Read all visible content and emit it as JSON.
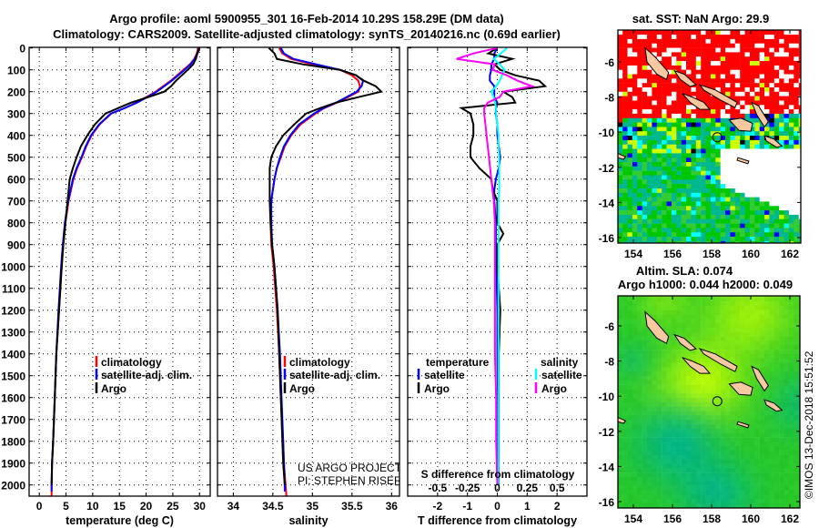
{
  "title": {
    "line1": "Argo profile: aoml 5900955_301 16-Feb-2014 10.29S 158.29E (DM data)",
    "line2": "Climatology: CARS2009. Satellite-adjusted climatology: synTS_20140216.nc (0.69d earlier)"
  },
  "credits": {
    "project": "US ARGO PROJECT",
    "pi": "PI: STEPHEN RISER",
    "stamp": "©IMOS 13-Dec-2018 15:51:52"
  },
  "chart_data": [
    {
      "type": "line",
      "id": "temperature",
      "xlabel": "temperature (deg C)",
      "ylabel": "depth",
      "xlim": [
        -1.9,
        32
      ],
      "ylim": [
        0,
        2050
      ],
      "xticks": [
        0,
        5,
        10,
        15,
        20,
        25,
        30
      ],
      "yticks": [
        0,
        100,
        200,
        300,
        400,
        500,
        600,
        700,
        800,
        900,
        1000,
        1100,
        1200,
        1300,
        1400,
        1500,
        1600,
        1700,
        1800,
        1900,
        2000
      ],
      "grid": true,
      "legend": {
        "placement": "bottom-center",
        "entries": [
          "climatology",
          "satellite-adj. clim.",
          "Argo"
        ]
      },
      "series": [
        {
          "name": "climatology",
          "color": "#ff0000",
          "depth": [
            0,
            25,
            50,
            75,
            100,
            125,
            150,
            175,
            200,
            225,
            250,
            275,
            300,
            350,
            400,
            450,
            500,
            550,
            600,
            700,
            800,
            900,
            1000,
            1200,
            1400,
            1600,
            1800,
            1900,
            2000,
            2050
          ],
          "values": [
            29.7,
            29.5,
            29.0,
            28.2,
            27.0,
            25.8,
            24.6,
            23.2,
            21.8,
            20.0,
            18.2,
            16.0,
            13.5,
            11.3,
            9.8,
            8.8,
            8.0,
            7.1,
            6.4,
            5.5,
            4.9,
            4.5,
            4.2,
            3.7,
            3.2,
            2.9,
            2.6,
            2.4,
            2.3,
            2.3
          ]
        },
        {
          "name": "satellite-adj. clim.",
          "color": "#0000ff",
          "depth": [
            0,
            25,
            50,
            75,
            100,
            125,
            150,
            175,
            200,
            225,
            250,
            275,
            300,
            350,
            400,
            450,
            500,
            550,
            600,
            700,
            800,
            900,
            1000,
            1200,
            1400,
            1600,
            1800,
            1900,
            2000,
            2030
          ],
          "values": [
            29.9,
            29.6,
            29.1,
            28.3,
            27.2,
            26.0,
            24.8,
            23.4,
            22.0,
            20.2,
            18.3,
            16.0,
            13.4,
            11.2,
            9.7,
            8.7,
            7.9,
            7.0,
            6.3,
            5.4,
            4.8,
            4.4,
            4.1,
            3.6,
            3.2,
            2.9,
            2.6,
            2.4,
            2.3,
            2.3
          ]
        },
        {
          "name": "Argo",
          "color": "#000000",
          "depth": [
            0,
            25,
            50,
            75,
            100,
            125,
            150,
            175,
            200,
            225,
            250,
            275,
            300,
            350,
            400,
            450,
            500,
            550,
            600,
            700,
            800,
            900,
            1000,
            1200,
            1400,
            1600,
            1800,
            1900,
            2000
          ],
          "values": [
            30.0,
            29.6,
            29.3,
            28.8,
            27.8,
            26.7,
            25.6,
            24.7,
            23.4,
            20.4,
            17.2,
            14.8,
            12.4,
            10.4,
            9.0,
            7.8,
            7.0,
            6.3,
            5.7,
            5.3,
            4.9,
            4.5,
            4.2,
            3.7,
            3.2,
            2.9,
            2.6,
            2.4,
            2.3
          ]
        }
      ]
    },
    {
      "type": "line",
      "id": "salinity",
      "xlabel": "salinity",
      "ylabel": "depth",
      "xlim": [
        33.8,
        36.1
      ],
      "ylim": [
        0,
        2050
      ],
      "xticks": [
        34,
        34.5,
        35,
        35.5,
        36
      ],
      "yticks": [
        0,
        100,
        200,
        300,
        400,
        500,
        600,
        700,
        800,
        900,
        1000,
        1100,
        1200,
        1300,
        1400,
        1500,
        1600,
        1700,
        1800,
        1900,
        2000
      ],
      "grid": true,
      "legend": {
        "placement": "bottom-center",
        "entries": [
          "climatology",
          "satellite-adj. clim.",
          "Argo"
        ]
      },
      "series": [
        {
          "name": "climatology",
          "color": "#ff0000",
          "depth": [
            0,
            25,
            50,
            75,
            100,
            125,
            150,
            175,
            200,
            225,
            250,
            275,
            300,
            350,
            400,
            450,
            500,
            550,
            600,
            700,
            800,
            900,
            1000,
            1200,
            1400,
            1600,
            1800,
            1900,
            2000,
            2050
          ],
          "values": [
            34.58,
            34.62,
            34.73,
            35.0,
            35.35,
            35.5,
            35.58,
            35.6,
            35.58,
            35.45,
            35.31,
            35.15,
            35.04,
            34.85,
            34.73,
            34.65,
            34.6,
            34.55,
            34.52,
            34.48,
            34.47,
            34.48,
            34.51,
            34.55,
            34.58,
            34.6,
            34.63,
            34.64,
            34.66,
            34.67
          ]
        },
        {
          "name": "satellite-adj. clim.",
          "color": "#0000ff",
          "depth": [
            0,
            25,
            50,
            75,
            100,
            125,
            150,
            175,
            200,
            225,
            250,
            275,
            300,
            350,
            400,
            450,
            500,
            550,
            600,
            700,
            800,
            900,
            1000,
            1200,
            1400,
            1600,
            1800,
            1900,
            2000,
            2030
          ],
          "values": [
            34.6,
            34.64,
            34.76,
            35.05,
            35.35,
            35.55,
            35.64,
            35.62,
            35.56,
            35.43,
            35.3,
            35.14,
            35.02,
            34.83,
            34.72,
            34.64,
            34.59,
            34.55,
            34.52,
            34.48,
            34.48,
            34.49,
            34.52,
            34.56,
            34.59,
            34.61,
            34.63,
            34.64,
            34.65,
            34.65
          ]
        },
        {
          "name": "Argo",
          "color": "#000000",
          "depth": [
            0,
            25,
            50,
            75,
            100,
            125,
            150,
            175,
            200,
            225,
            250,
            275,
            300,
            350,
            400,
            450,
            500,
            550,
            600,
            700,
            800,
            900,
            1000,
            1200,
            1400,
            1600,
            1800,
            1900,
            2000
          ],
          "values": [
            34.45,
            34.52,
            34.55,
            34.88,
            35.35,
            35.55,
            35.65,
            35.8,
            35.87,
            35.58,
            35.3,
            35.1,
            34.92,
            34.77,
            34.63,
            34.54,
            34.48,
            34.46,
            34.46,
            34.46,
            34.47,
            34.49,
            34.52,
            34.56,
            34.58,
            34.6,
            34.62,
            34.63,
            34.65
          ]
        }
      ]
    },
    {
      "type": "line",
      "id": "difference",
      "xlabel": "T difference from climatology",
      "x2label": "S difference from climatology",
      "ylabel": "depth",
      "xlim": [
        -3,
        3
      ],
      "ylim": [
        0,
        2050
      ],
      "xticks": [
        -2,
        -1,
        0,
        1,
        2
      ],
      "x2ticks": [
        -0.5,
        -0.25,
        0,
        0.25,
        0.5
      ],
      "x2tick_labels": [
        "-0.5",
        "-0.25",
        "0",
        "0.25",
        "0.5"
      ],
      "s_to_t_scale": 4,
      "yticks": [
        0,
        100,
        200,
        300,
        400,
        500,
        600,
        700,
        800,
        900,
        1000,
        1100,
        1200,
        1300,
        1400,
        1500,
        1600,
        1700,
        1800,
        1900,
        2000
      ],
      "grid": true,
      "legend": {
        "placement": "bottom",
        "temperature_title": "temperature",
        "salinity_title": "salinity",
        "entries": [
          "satellite",
          "Argo",
          "satellite",
          "Argo"
        ]
      },
      "series": [
        {
          "name": "temperature satellite",
          "quantity": "T",
          "color": "#0000ff",
          "depth": [
            0,
            25,
            50,
            75,
            100,
            125,
            150,
            175,
            200,
            225,
            250,
            275,
            300,
            350,
            400,
            450,
            500,
            550,
            600,
            650,
            700,
            800,
            850,
            900,
            1000,
            1200,
            1400,
            1600,
            1800,
            2000
          ],
          "values": [
            0,
            -0.1,
            -0.1,
            -0.2,
            -0.2,
            -0.25,
            -0.25,
            -0.1,
            -0.1,
            -0.1,
            0,
            -0.05,
            -0.05,
            0,
            0,
            0.05,
            0.1,
            0.05,
            -0.05,
            -0.1,
            -0.1,
            -0.05,
            -0.05,
            -0.05,
            -0.03,
            0,
            0,
            0.02,
            0.02,
            0.02
          ]
        },
        {
          "name": "temperature Argo",
          "quantity": "T",
          "color": "#000000",
          "depth": [
            0,
            25,
            50,
            75,
            100,
            125,
            150,
            175,
            200,
            225,
            250,
            275,
            300,
            350,
            400,
            450,
            500,
            550,
            600,
            650,
            700,
            800,
            850,
            900,
            1000,
            1200,
            1400,
            1600,
            1800,
            2000
          ],
          "values": [
            0,
            -0.3,
            0.5,
            -0.1,
            0.1,
            0.6,
            1.4,
            1.6,
            0.2,
            0.5,
            0.6,
            -1.2,
            -0.9,
            -0.8,
            -0.8,
            -0.9,
            -0.9,
            -0.6,
            -0.2,
            -0.15,
            0,
            0,
            0.2,
            0,
            0,
            0.1,
            0.05,
            0.05,
            0.05,
            0.05
          ]
        },
        {
          "name": "salinity satellite",
          "quantity": "S",
          "color": "#00ffff",
          "depth": [
            0,
            25,
            50,
            75,
            100,
            125,
            150,
            175,
            200,
            225,
            250,
            275,
            300,
            350,
            400,
            450,
            500,
            550,
            600,
            650,
            700,
            800,
            850,
            900,
            1000,
            1200,
            1400,
            1600,
            1800,
            2000
          ],
          "values": [
            0.08,
            0.03,
            -0.03,
            0.02,
            0.06,
            0.04,
            0.02,
            -0.01,
            -0.05,
            -0.03,
            -0.02,
            -0.01,
            -0.01,
            0,
            0.01,
            0.01,
            0.015,
            0.015,
            0.015,
            0.015,
            0.01,
            0.01,
            0.01,
            0.01,
            0.01,
            0.01,
            0.01,
            0.01,
            0.01,
            0.01
          ]
        },
        {
          "name": "salinity Argo",
          "quantity": "S",
          "color": "#ff00ff",
          "depth": [
            0,
            25,
            50,
            75,
            100,
            125,
            150,
            175,
            200,
            225,
            250,
            275,
            300,
            350,
            400,
            450,
            500,
            550,
            600,
            650,
            700,
            800,
            850,
            900,
            1000,
            1200,
            1400,
            1600,
            1800,
            2000
          ],
          "values": [
            0,
            -0.2,
            -0.34,
            -0.02,
            -0.04,
            0.08,
            0.17,
            0.29,
            0.05,
            0.02,
            -0.08,
            -0.11,
            -0.11,
            -0.1,
            -0.09,
            -0.08,
            -0.07,
            -0.06,
            -0.05,
            -0.04,
            -0.03,
            -0.02,
            -0.02,
            -0.02,
            -0.02,
            -0.02,
            -0.02,
            -0.01,
            -0.01,
            0
          ]
        }
      ]
    },
    {
      "type": "heatmap",
      "id": "sst-map",
      "title": "sat. SST: NaN Argo: 29.9",
      "xlim": [
        153.2,
        163.5
      ],
      "ylim": [
        -16.3,
        -4.2
      ],
      "xticks": [
        154,
        156,
        158,
        160,
        162
      ],
      "yticks": [
        -6,
        -8,
        -10,
        -12,
        -14,
        -16
      ],
      "profile_location": [
        158.29,
        -10.29
      ]
    },
    {
      "type": "heatmap",
      "id": "sla-map",
      "title1": "Altim. SLA: 0.074",
      "title2": "Argo h1000: 0.044 h2000: 0.049",
      "xlim": [
        153.2,
        163.5
      ],
      "ylim": [
        -16.3,
        -4.1
      ],
      "xticks": [
        154,
        156,
        158,
        160,
        162
      ],
      "yticks": [
        -6,
        -8,
        -10,
        -12,
        -14,
        -16
      ],
      "profile_location": [
        158.29,
        -10.29
      ]
    }
  ],
  "colors": {
    "land": "#f8c8a0",
    "red": "#ff0000",
    "green": "#00c800",
    "teal": "#00b890",
    "yellow": "#ccff00",
    "cyan": "#00ffff",
    "blue": "#0000ff"
  }
}
